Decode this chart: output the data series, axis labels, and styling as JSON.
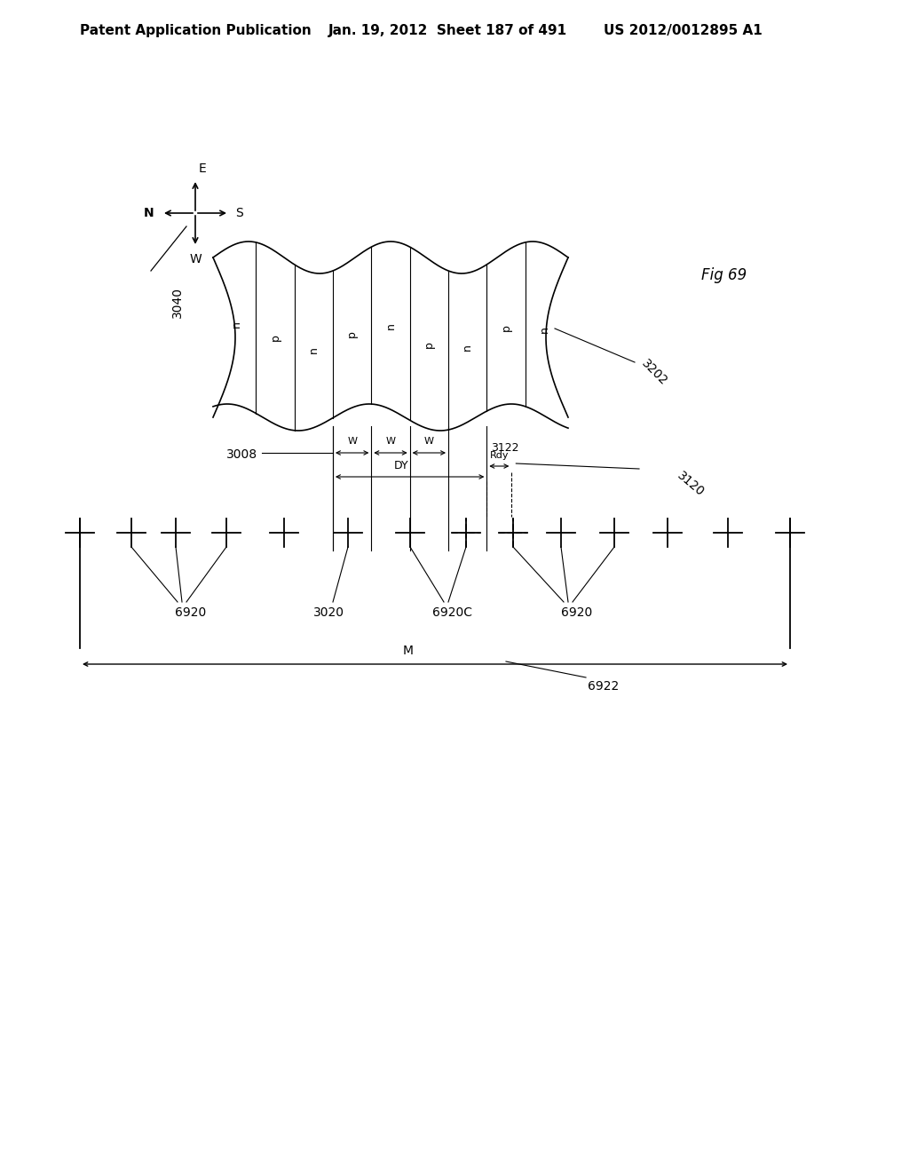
{
  "header_left": "Patent Application Publication",
  "header_mid": "Jan. 19, 2012  Sheet 187 of 491",
  "header_right": "US 2012/0012895 A1",
  "fig_label": "Fig 69",
  "labels_3040": "3040",
  "labels_3202": "3202",
  "labels_3122": "3122",
  "labels_3120": "3120",
  "labels_3008": "3008",
  "labels_6920": "6920",
  "labels_3020": "3020",
  "labels_6920C": "6920C",
  "labels_6922": "6922",
  "label_M": "M",
  "label_DY": "DY",
  "label_Rdy": "Rdy",
  "label_W": "W",
  "stripe_labels": [
    "n",
    "p",
    "n",
    "p",
    "n",
    "p",
    "n",
    "p",
    "n"
  ],
  "bg_color": "#ffffff",
  "line_color": "#000000"
}
